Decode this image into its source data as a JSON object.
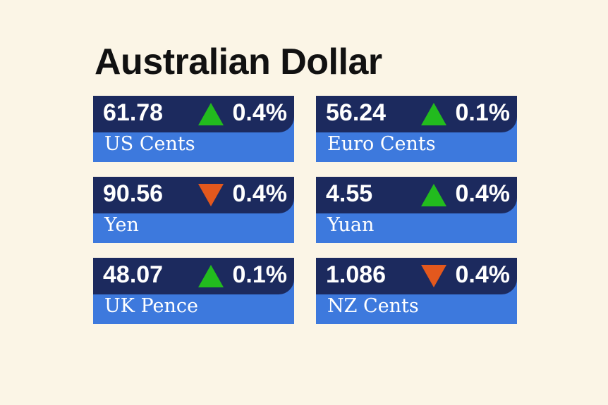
{
  "title": "Australian Dollar",
  "colors": {
    "background": "#fbf5e6",
    "card_top": "#1c2a5e",
    "card_bottom": "#3d79dd",
    "up": "#22bb1e",
    "down": "#e3581d"
  },
  "rates": [
    {
      "value": "61.78",
      "direction": "up",
      "icon": "up-triangle-icon",
      "change": "0.4%",
      "currency": "US Cents"
    },
    {
      "value": "56.24",
      "direction": "up",
      "icon": "up-triangle-icon",
      "change": "0.1%",
      "currency": "Euro Cents"
    },
    {
      "value": "90.56",
      "direction": "down",
      "icon": "down-triangle-icon",
      "change": "0.4%",
      "currency": "Yen"
    },
    {
      "value": "4.55",
      "direction": "up",
      "icon": "up-triangle-icon",
      "change": "0.4%",
      "currency": "Yuan"
    },
    {
      "value": "48.07",
      "direction": "up",
      "icon": "up-triangle-icon",
      "change": "0.1%",
      "currency": "UK Pence"
    },
    {
      "value": "1.086",
      "direction": "down",
      "icon": "down-triangle-icon",
      "change": "0.4%",
      "currency": "NZ Cents"
    }
  ]
}
